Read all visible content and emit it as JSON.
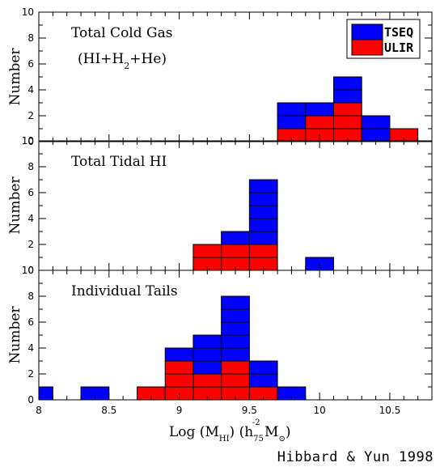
{
  "credit": "Hibbard & Yun 1998",
  "xaxis": {
    "title_main": "Log (M",
    "title_sub1": "HI",
    "title_mid": ") (h",
    "title_sub2": "75",
    "title_sup2": "-2",
    "title_end": " M",
    "title_sub3": "⊙",
    "title_close": ")",
    "ticks": [
      "8",
      "8.5",
      "9",
      "9.5",
      "10",
      "10.5"
    ]
  },
  "legend": [
    {
      "label": "TSEQ",
      "color": "#0000ff"
    },
    {
      "label": "ULIR",
      "color": "#ff0000"
    }
  ],
  "chart_data": [
    {
      "type": "bar",
      "subtype": "stacked-histogram-of-unit-blocks",
      "panel_label": "Total Cold Gas",
      "panel_sublabel": "(HI+H2+He)",
      "ylabel": "Number",
      "xlim": [
        8,
        10.8
      ],
      "ylim": [
        0,
        10
      ],
      "bin_width": 0.2,
      "bins": [
        {
          "x0": 9.7,
          "red": 1,
          "blue": 2
        },
        {
          "x0": 9.9,
          "red": 2,
          "blue": 1
        },
        {
          "x0": 10.1,
          "red": 3,
          "blue": 2
        },
        {
          "x0": 10.3,
          "red": 0,
          "blue": 2
        },
        {
          "x0": 10.5,
          "red": 1,
          "blue": 0
        }
      ]
    },
    {
      "type": "bar",
      "subtype": "stacked-histogram-of-unit-blocks",
      "panel_label": "Total Tidal HI",
      "ylabel": "Number",
      "xlim": [
        8,
        10.8
      ],
      "ylim": [
        0,
        10
      ],
      "bin_width": 0.2,
      "bins": [
        {
          "x0": 9.1,
          "red": 2,
          "blue": 0
        },
        {
          "x0": 9.3,
          "red": 2,
          "blue": 1
        },
        {
          "x0": 9.5,
          "red": 2,
          "blue": 5
        },
        {
          "x0": 9.9,
          "red": 0,
          "blue": 1
        }
      ]
    },
    {
      "type": "bar",
      "subtype": "stacked-histogram-of-unit-blocks",
      "panel_label": "Individual Tails",
      "ylabel": "Number",
      "xlim": [
        8,
        10.8
      ],
      "ylim": [
        0,
        10
      ],
      "bin_width": 0.2,
      "bins": [
        {
          "x0": 7.9,
          "red": 0,
          "blue": 1
        },
        {
          "x0": 8.3,
          "red": 0,
          "blue": 1
        },
        {
          "x0": 8.7,
          "red": 1,
          "blue": 0
        },
        {
          "x0": 8.9,
          "red": 3,
          "blue": 1
        },
        {
          "x0": 9.1,
          "red": 2,
          "blue": 3
        },
        {
          "x0": 9.3,
          "red": 3,
          "blue": 5
        },
        {
          "x0": 9.5,
          "red": 1,
          "blue": 2
        },
        {
          "x0": 9.7,
          "red": 0,
          "blue": 1
        }
      ]
    }
  ]
}
